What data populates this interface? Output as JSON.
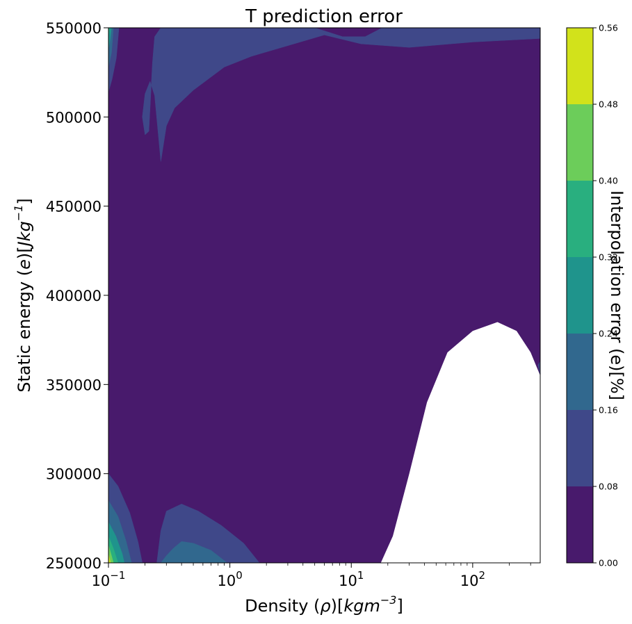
{
  "chart_data": {
    "type": "heatmap",
    "subtype": "filled-contour",
    "title": "T prediction error",
    "xlabel": {
      "prefix": "Density (",
      "sym": "ρ",
      "mid": ")[",
      "unit": "kgm",
      "sup": "−3",
      "suffix": "]"
    },
    "ylabel": {
      "prefix": "Static energy (",
      "sym": "e",
      "mid": ")[",
      "unit": "Jkg",
      "sup": "−1",
      "suffix": "]"
    },
    "x_scale": "log",
    "xlim": [
      0.1,
      360
    ],
    "ylim": [
      250000,
      550000
    ],
    "x_ticks": [
      {
        "value": 0.1,
        "base": "10",
        "exp": "−1"
      },
      {
        "value": 1,
        "base": "10",
        "exp": "0"
      },
      {
        "value": 10,
        "base": "10",
        "exp": "1"
      },
      {
        "value": 100,
        "base": "10",
        "exp": "2"
      }
    ],
    "y_ticks": [
      {
        "value": 250000,
        "label": "250000"
      },
      {
        "value": 300000,
        "label": "300000"
      },
      {
        "value": 350000,
        "label": "350000"
      },
      {
        "value": 400000,
        "label": "400000"
      },
      {
        "value": 450000,
        "label": "450000"
      },
      {
        "value": 500000,
        "label": "500000"
      },
      {
        "value": 550000,
        "label": "550000"
      }
    ],
    "colorbar": {
      "label": "Interpolation error (e)[%]",
      "levels": [
        0.0,
        0.08,
        0.16,
        0.24,
        0.32,
        0.4,
        0.48,
        0.56
      ],
      "tick_labels": [
        "0.00",
        "0.08",
        "0.16",
        "0.24",
        "0.32",
        "0.40",
        "0.48",
        "0.56"
      ],
      "colors": [
        "#481a6c",
        "#3f4889",
        "#31688e",
        "#1f948c",
        "#29af7f",
        "#6ccd5a",
        "#d2e21b"
      ]
    },
    "background_level_color": "#481a6c",
    "contour_regions": [
      {
        "level": 1,
        "color": "#3f4889",
        "points": [
          [
            0.1,
            550000
          ],
          [
            0.1,
            514000
          ],
          [
            0.107,
            521000
          ],
          [
            0.116,
            533000
          ],
          [
            0.122,
            550000
          ]
        ]
      },
      {
        "level": 2,
        "color": "#31688e",
        "points": [
          [
            0.1,
            550000
          ],
          [
            0.1,
            528000
          ],
          [
            0.106,
            536000
          ],
          [
            0.11,
            550000
          ]
        ]
      },
      {
        "level": 3,
        "color": "#1f948c",
        "points": [
          [
            0.1,
            550000
          ],
          [
            0.1,
            538000
          ],
          [
            0.103,
            543000
          ],
          [
            0.106,
            550000
          ]
        ]
      },
      {
        "level": 4,
        "color": "#29af7f",
        "points": [
          [
            0.1,
            550000
          ],
          [
            0.1,
            545000
          ],
          [
            0.102,
            550000
          ]
        ]
      },
      {
        "level": 1,
        "color": "#3f4889",
        "points": [
          [
            0.27,
            550000
          ],
          [
            0.55,
            550000
          ],
          [
            5.0,
            550000
          ],
          [
            8.5,
            545000
          ],
          [
            13,
            545000
          ],
          [
            18,
            550000
          ],
          [
            360,
            550000
          ],
          [
            360,
            544000
          ],
          [
            100,
            542000
          ],
          [
            30,
            539000
          ],
          [
            12,
            541000
          ],
          [
            6,
            546000
          ],
          [
            3,
            540000
          ],
          [
            1.5,
            534000
          ],
          [
            0.9,
            528000
          ],
          [
            0.5,
            515000
          ],
          [
            0.35,
            505000
          ],
          [
            0.3,
            495000
          ],
          [
            0.27,
            475000
          ],
          [
            0.24,
            512000
          ],
          [
            0.22,
            520000
          ],
          [
            0.2,
            513000
          ],
          [
            0.19,
            500000
          ],
          [
            0.2,
            490000
          ],
          [
            0.215,
            492000
          ],
          [
            0.23,
            530000
          ],
          [
            0.24,
            545000
          ]
        ]
      },
      {
        "level": 1,
        "color": "#3f4889",
        "points": [
          [
            360,
            363000
          ],
          [
            360,
            355000
          ],
          [
            345,
            361000
          ]
        ]
      },
      {
        "level": 1,
        "color": "#3f4889",
        "points": [
          [
            0.1,
            250000
          ],
          [
            0.1,
            300000
          ],
          [
            0.12,
            293000
          ],
          [
            0.15,
            278000
          ],
          [
            0.175,
            262000
          ],
          [
            0.19,
            250000
          ]
        ]
      },
      {
        "level": 2,
        "color": "#31688e",
        "points": [
          [
            0.1,
            250000
          ],
          [
            0.1,
            285000
          ],
          [
            0.12,
            276000
          ],
          [
            0.14,
            262000
          ],
          [
            0.155,
            250000
          ]
        ]
      },
      {
        "level": 3,
        "color": "#1f948c",
        "points": [
          [
            0.1,
            250000
          ],
          [
            0.1,
            273000
          ],
          [
            0.115,
            265000
          ],
          [
            0.13,
            255000
          ],
          [
            0.135,
            250000
          ]
        ]
      },
      {
        "level": 4,
        "color": "#29af7f",
        "points": [
          [
            0.1,
            250000
          ],
          [
            0.1,
            265000
          ],
          [
            0.11,
            258000
          ],
          [
            0.12,
            250000
          ]
        ]
      },
      {
        "level": 5,
        "color": "#6ccd5a",
        "points": [
          [
            0.1,
            250000
          ],
          [
            0.1,
            260000
          ],
          [
            0.107,
            253000
          ],
          [
            0.11,
            250000
          ]
        ]
      },
      {
        "level": 6,
        "color": "#d2e21b",
        "points": [
          [
            0.1,
            250000
          ],
          [
            0.1,
            255000
          ],
          [
            0.104,
            250000
          ]
        ]
      },
      {
        "level": 1,
        "color": "#3f4889",
        "points": [
          [
            0.25,
            250000
          ],
          [
            0.27,
            268000
          ],
          [
            0.3,
            279000
          ],
          [
            0.4,
            283000
          ],
          [
            0.55,
            279000
          ],
          [
            0.85,
            271000
          ],
          [
            1.3,
            261000
          ],
          [
            1.75,
            250000
          ]
        ]
      },
      {
        "level": 2,
        "color": "#31688e",
        "points": [
          [
            0.27,
            250000
          ],
          [
            0.3,
            254000
          ],
          [
            0.34,
            258000
          ],
          [
            0.4,
            262000
          ],
          [
            0.5,
            261000
          ],
          [
            0.7,
            257000
          ],
          [
            0.95,
            250000
          ]
        ]
      }
    ],
    "missing_region": {
      "color": "#ffffff",
      "points": [
        [
          17.5,
          250000
        ],
        [
          22,
          265000
        ],
        [
          30,
          300000
        ],
        [
          42,
          340000
        ],
        [
          62,
          368000
        ],
        [
          100,
          380000
        ],
        [
          160,
          385000
        ],
        [
          230,
          380000
        ],
        [
          300,
          368000
        ],
        [
          360,
          355000
        ],
        [
          360,
          250000
        ]
      ]
    }
  }
}
